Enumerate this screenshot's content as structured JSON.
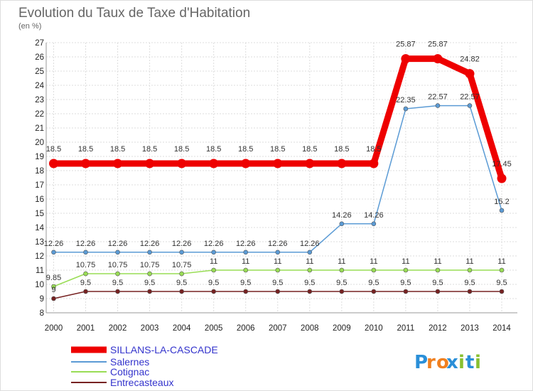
{
  "chart_data": {
    "type": "line",
    "title": "Evolution du Taux de Taxe d'Habitation",
    "subtitle": "(en %)",
    "xlabel": "",
    "ylabel": "",
    "categories": [
      "2000",
      "2001",
      "2002",
      "2003",
      "2004",
      "2005",
      "2006",
      "2007",
      "2008",
      "2009",
      "2010",
      "2011",
      "2012",
      "2013",
      "2014"
    ],
    "ylim": [
      8,
      27
    ],
    "yticks": [
      "8",
      "9",
      "10",
      "11",
      "12",
      "13",
      "14",
      "15",
      "16",
      "17",
      "18",
      "19",
      "20",
      "21",
      "22",
      "23",
      "24",
      "25",
      "26",
      "27"
    ],
    "grid": true,
    "legend_position": "bottom-left",
    "series": [
      {
        "name": "SILLANS-LA-CASCADE",
        "color": "#ee0000",
        "values": [
          18.5,
          18.5,
          18.5,
          18.5,
          18.5,
          18.5,
          18.5,
          18.5,
          18.5,
          18.5,
          18.5,
          25.87,
          25.87,
          24.82,
          17.45
        ],
        "labels": [
          "18.5",
          "18.5",
          "18.5",
          "18.5",
          "18.5",
          "18.5",
          "18.5",
          "18.5",
          "18.5",
          "18.5",
          "18.5",
          "25.87",
          "25.87",
          "24.82",
          "17.45"
        ]
      },
      {
        "name": "Salernes",
        "color": "#5b9bd5",
        "values": [
          12.26,
          12.26,
          12.26,
          12.26,
          12.26,
          12.26,
          12.26,
          12.26,
          12.26,
          14.26,
          14.26,
          22.35,
          22.57,
          22.57,
          15.2
        ],
        "labels": [
          "12.26",
          "12.26",
          "12.26",
          "12.26",
          "12.26",
          "12.26",
          "12.26",
          "12.26",
          "12.26",
          "14.26",
          "14.26",
          "22.35",
          "22.57",
          "22.57",
          "15.2"
        ]
      },
      {
        "name": "Cotignac",
        "color": "#99dd55",
        "values": [
          9.85,
          10.75,
          10.75,
          10.75,
          10.75,
          11,
          11,
          11,
          11,
          11,
          11,
          11,
          11,
          11,
          11
        ],
        "labels": [
          "9.85",
          "10.75",
          "10.75",
          "10.75",
          "10.75",
          "11",
          "11",
          "11",
          "11",
          "11",
          "11",
          "11",
          "11",
          "11",
          "11"
        ]
      },
      {
        "name": "Entrecasteaux",
        "color": "#772222",
        "values": [
          9,
          9.5,
          9.5,
          9.5,
          9.5,
          9.5,
          9.5,
          9.5,
          9.5,
          9.5,
          9.5,
          9.5,
          9.5,
          9.5,
          9.5
        ],
        "labels": [
          "9",
          "9.5",
          "9.5",
          "9.5",
          "9.5",
          "9.5",
          "9.5",
          "9.5",
          "9.5",
          "9.5",
          "9.5",
          "9.5",
          "9.5",
          "9.5",
          "9.5"
        ]
      }
    ]
  },
  "logo": {
    "text": "Proxiti",
    "letters": [
      "P",
      "r",
      "o",
      "x",
      "i",
      "t",
      "i"
    ],
    "colors": [
      "#2a8fd8",
      "#f08020",
      "#f08020",
      "#2a8fd8",
      "#88c030",
      "#2a8fd8",
      "#88c030"
    ]
  }
}
